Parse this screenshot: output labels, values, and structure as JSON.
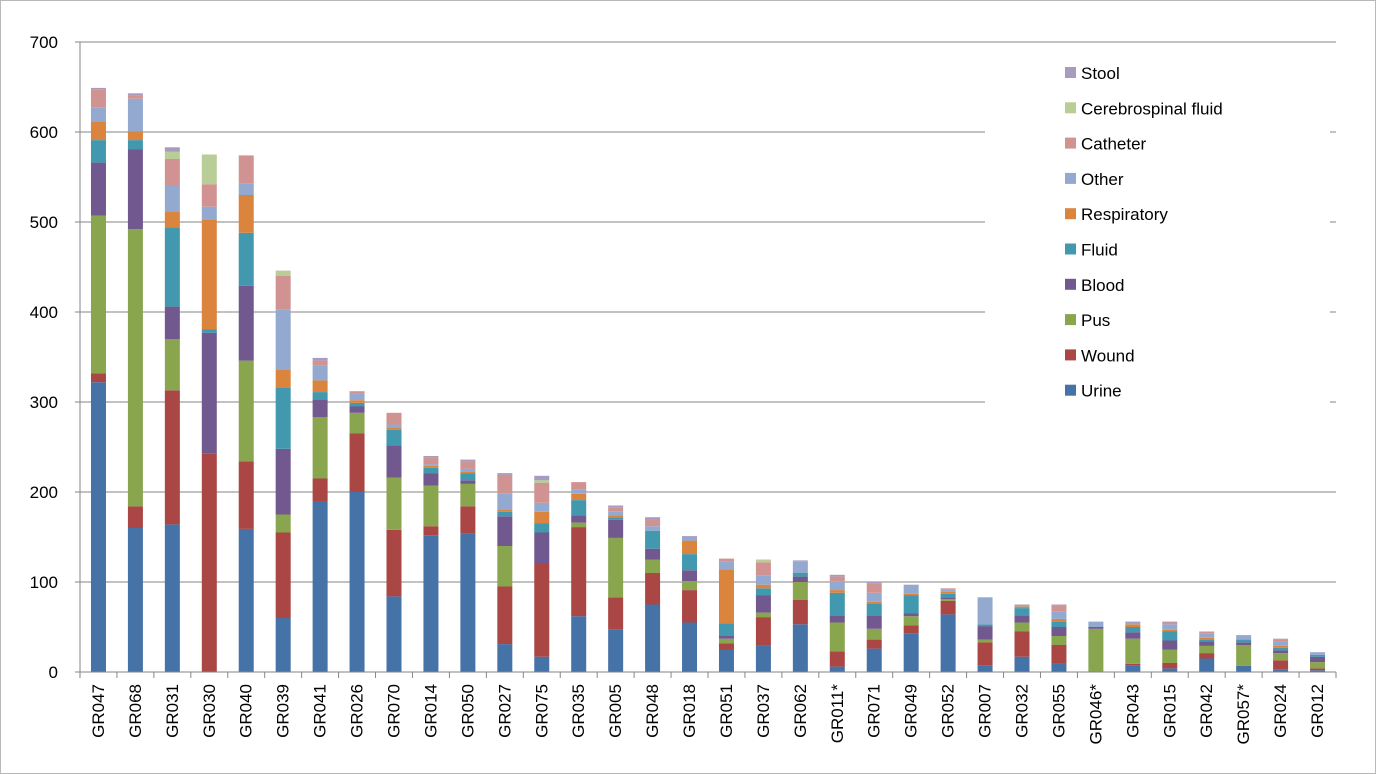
{
  "chart_data": {
    "type": "bar",
    "stacked": true,
    "ylim": [
      0,
      700
    ],
    "yticks": [
      0,
      100,
      200,
      300,
      400,
      500,
      600,
      700
    ],
    "grid": true,
    "legend_position": "top-right",
    "categories": [
      "GR047",
      "GR068",
      "GR031",
      "GR030",
      "GR040",
      "GR039",
      "GR041",
      "GR026",
      "GR070",
      "GR014",
      "GR050",
      "GR027",
      "GR075",
      "GR035",
      "GR005",
      "GR048",
      "GR018",
      "GR051",
      "GR037",
      "GR062",
      "GR011*",
      "GR071",
      "GR049",
      "GR052",
      "GR007",
      "GR032",
      "GR055",
      "GR046*",
      "GR043",
      "GR015",
      "GR042",
      "GR057*",
      "GR024",
      "GR012"
    ],
    "series": [
      {
        "name": "Urine",
        "color": "#4572a7",
        "values": [
          322,
          160,
          164,
          0,
          159,
          60,
          190,
          200,
          84,
          152,
          154,
          31,
          17,
          62,
          47,
          75,
          55,
          25,
          29,
          53,
          6,
          26,
          43,
          64,
          7,
          17,
          9,
          0,
          7,
          4,
          15,
          7,
          3,
          2
        ]
      },
      {
        "name": "Wound",
        "color": "#aa4643",
        "values": [
          10,
          24,
          149,
          243,
          75,
          95,
          25,
          65,
          74,
          10,
          30,
          64,
          103,
          99,
          36,
          35,
          36,
          7,
          32,
          27,
          17,
          10,
          9,
          15,
          26,
          28,
          21,
          0,
          2,
          6,
          6,
          0,
          10,
          2
        ]
      },
      {
        "name": "Pus",
        "color": "#89a54e",
        "values": [
          175,
          308,
          57,
          0,
          112,
          20,
          68,
          23,
          58,
          45,
          25,
          45,
          0,
          5,
          66,
          15,
          10,
          5,
          5,
          20,
          32,
          12,
          10,
          2,
          3,
          10,
          10,
          48,
          28,
          15,
          8,
          23,
          8,
          7
        ]
      },
      {
        "name": "Blood",
        "color": "#71588f",
        "values": [
          59,
          89,
          36,
          134,
          83,
          73,
          20,
          7,
          36,
          14,
          4,
          33,
          35,
          8,
          20,
          12,
          12,
          3,
          19,
          6,
          8,
          15,
          3,
          2,
          15,
          8,
          10,
          2,
          7,
          10,
          5,
          3,
          3,
          6
        ]
      },
      {
        "name": "Fluid",
        "color": "#4198af",
        "values": [
          25,
          10,
          88,
          4,
          59,
          68,
          8,
          4,
          17,
          6,
          8,
          5,
          10,
          17,
          3,
          20,
          18,
          14,
          8,
          4,
          25,
          13,
          20,
          4,
          2,
          8,
          6,
          0,
          6,
          10,
          2,
          3,
          3,
          2
        ]
      },
      {
        "name": "Respiratory",
        "color": "#db843d",
        "values": [
          21,
          10,
          18,
          122,
          42,
          20,
          13,
          3,
          3,
          2,
          2,
          2,
          13,
          7,
          2,
          0,
          15,
          60,
          4,
          0,
          3,
          2,
          2,
          2,
          0,
          2,
          3,
          0,
          3,
          2,
          2,
          0,
          2,
          0
        ]
      },
      {
        "name": "Other",
        "color": "#93a9cf",
        "values": [
          15,
          36,
          28,
          14,
          13,
          67,
          17,
          7,
          3,
          2,
          3,
          18,
          10,
          5,
          4,
          5,
          4,
          9,
          10,
          13,
          10,
          10,
          10,
          3,
          30,
          2,
          8,
          6,
          2,
          6,
          5,
          5,
          5,
          3
        ]
      },
      {
        "name": "Catheter",
        "color": "#d19392",
        "values": [
          20,
          4,
          30,
          25,
          31,
          37,
          5,
          3,
          13,
          7,
          8,
          21,
          22,
          8,
          5,
          8,
          0,
          3,
          15,
          0,
          5,
          10,
          0,
          1,
          0,
          0,
          7,
          0,
          0,
          2,
          2,
          0,
          2,
          0
        ]
      },
      {
        "name": "Cerebrospinal fluid",
        "color": "#b9cd96",
        "values": [
          0,
          0,
          8,
          33,
          0,
          6,
          0,
          0,
          0,
          0,
          0,
          0,
          3,
          0,
          0,
          0,
          0,
          0,
          3,
          0,
          0,
          0,
          0,
          0,
          0,
          0,
          0,
          0,
          0,
          0,
          0,
          0,
          0,
          0
        ]
      },
      {
        "name": "Stool",
        "color": "#a99bbd",
        "values": [
          2,
          2,
          5,
          0,
          0,
          0,
          3,
          0,
          0,
          2,
          2,
          2,
          5,
          0,
          2,
          2,
          1,
          0,
          0,
          1,
          2,
          2,
          0,
          0,
          0,
          0,
          1,
          0,
          1,
          1,
          0,
          0,
          1,
          0
        ]
      }
    ]
  }
}
